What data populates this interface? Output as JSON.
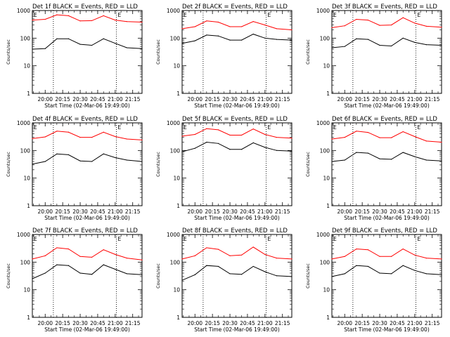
{
  "figure": {
    "type": "line",
    "y_scale": "log",
    "ylim": [
      1,
      1000
    ],
    "y_ticks": [
      "1",
      "10",
      "100",
      "1000"
    ],
    "ylabel": "Counts/sec",
    "xlabel": "Start Time (02-Mar-06 19:49:00)",
    "x_range_minutes": [
      19.5,
      20.0,
      21.5
    ],
    "x_tick_labels": [
      "20:00",
      "20:15",
      "20:30",
      "20:45",
      "21:00",
      "21:15"
    ],
    "x_tick_minutes": [
      20.0,
      20.25,
      20.5,
      20.75,
      21.0,
      21.25
    ],
    "event_marker_label": "E",
    "colors": {
      "events": "#000000",
      "lld": "#ff0000"
    }
  },
  "chart_data": [
    {
      "type": "line",
      "title": "Det 1f BLACK = Events, RED = LLD",
      "x_start": "19:49",
      "x_end": "21:23",
      "dotted_lines": [
        "20:07",
        "21:01"
      ],
      "series": [
        {
          "name": "Events",
          "color": "#000000",
          "x": [
            "19:49",
            "20:00",
            "20:10",
            "20:20",
            "20:30",
            "20:40",
            "20:50",
            "21:00",
            "21:10",
            "21:23"
          ],
          "values": [
            40,
            42,
            95,
            95,
            60,
            55,
            95,
            65,
            45,
            42
          ]
        },
        {
          "name": "LLD",
          "color": "#ff0000",
          "x": [
            "19:49",
            "20:00",
            "20:10",
            "20:20",
            "20:30",
            "20:40",
            "20:50",
            "21:00",
            "21:10",
            "21:23"
          ],
          "values": [
            450,
            480,
            700,
            650,
            420,
            430,
            650,
            450,
            400,
            380
          ]
        }
      ]
    },
    {
      "type": "line",
      "title": "Det 2f BLACK = Events, RED = LLD",
      "x_start": "19:49",
      "x_end": "21:23",
      "dotted_lines": [
        "20:07",
        "21:01"
      ],
      "series": [
        {
          "name": "Events",
          "color": "#000000",
          "x": [
            "19:49",
            "20:00",
            "20:10",
            "20:20",
            "20:30",
            "20:40",
            "20:50",
            "21:00",
            "21:10",
            "21:23"
          ],
          "values": [
            65,
            80,
            130,
            120,
            85,
            85,
            140,
            100,
            90,
            85
          ]
        },
        {
          "name": "LLD",
          "color": "#ff0000",
          "x": [
            "19:49",
            "20:00",
            "20:10",
            "20:20",
            "20:30",
            "20:40",
            "20:50",
            "21:00",
            "21:10",
            "21:23"
          ],
          "values": [
            220,
            260,
            420,
            380,
            260,
            260,
            400,
            300,
            220,
            200
          ]
        }
      ]
    },
    {
      "type": "line",
      "title": "Det 3f BLACK = Events, RED = LLD",
      "x_start": "19:49",
      "x_end": "21:23",
      "dotted_lines": [
        "20:07",
        "21:01"
      ],
      "series": [
        {
          "name": "Events",
          "color": "#000000",
          "x": [
            "19:49",
            "20:00",
            "20:10",
            "20:20",
            "20:30",
            "20:40",
            "20:50",
            "21:00",
            "21:10",
            "21:23"
          ],
          "values": [
            45,
            50,
            95,
            90,
            55,
            52,
            100,
            70,
            58,
            55
          ]
        },
        {
          "name": "LLD",
          "color": "#ff0000",
          "x": [
            "19:49",
            "20:00",
            "20:10",
            "20:20",
            "20:30",
            "20:40",
            "20:50",
            "21:00",
            "21:10",
            "21:23"
          ],
          "values": [
            240,
            280,
            480,
            450,
            290,
            300,
            550,
            350,
            270,
            250
          ]
        }
      ]
    },
    {
      "type": "line",
      "title": "Det 4f BLACK = Events, RED = LLD",
      "x_start": "19:49",
      "x_end": "21:23",
      "dotted_lines": [
        "20:07",
        "21:01"
      ],
      "series": [
        {
          "name": "Events",
          "color": "#000000",
          "x": [
            "19:49",
            "20:00",
            "20:10",
            "20:20",
            "20:30",
            "20:40",
            "20:50",
            "21:00",
            "21:10",
            "21:23"
          ],
          "values": [
            32,
            40,
            75,
            70,
            42,
            40,
            75,
            55,
            45,
            40
          ]
        },
        {
          "name": "LLD",
          "color": "#ff0000",
          "x": [
            "19:49",
            "20:00",
            "20:10",
            "20:20",
            "20:30",
            "20:40",
            "20:50",
            "21:00",
            "21:10",
            "21:23"
          ],
          "values": [
            270,
            310,
            500,
            460,
            300,
            300,
            460,
            320,
            260,
            240
          ]
        }
      ]
    },
    {
      "type": "line",
      "title": "Det 5f BLACK = Events, RED = LLD",
      "x_start": "19:49",
      "x_end": "21:23",
      "dotted_lines": [
        "20:07",
        "21:01"
      ],
      "series": [
        {
          "name": "Events",
          "color": "#000000",
          "x": [
            "19:49",
            "20:00",
            "20:10",
            "20:20",
            "20:30",
            "20:40",
            "20:50",
            "21:00",
            "21:10",
            "21:23"
          ],
          "values": [
            90,
            120,
            200,
            180,
            110,
            110,
            190,
            130,
            100,
            95
          ]
        },
        {
          "name": "LLD",
          "color": "#ff0000",
          "x": [
            "19:49",
            "20:00",
            "20:10",
            "20:20",
            "20:30",
            "20:40",
            "20:50",
            "21:00",
            "21:10",
            "21:23"
          ],
          "values": [
            330,
            380,
            620,
            560,
            360,
            360,
            600,
            380,
            300,
            280
          ]
        }
      ]
    },
    {
      "type": "line",
      "title": "Det 6f BLACK = Events, RED = LLD",
      "x_start": "19:49",
      "x_end": "21:23",
      "dotted_lines": [
        "20:07",
        "21:01"
      ],
      "series": [
        {
          "name": "Events",
          "color": "#000000",
          "x": [
            "19:49",
            "20:00",
            "20:10",
            "20:20",
            "20:30",
            "20:40",
            "20:50",
            "21:00",
            "21:10",
            "21:23"
          ],
          "values": [
            40,
            45,
            85,
            80,
            50,
            48,
            85,
            60,
            45,
            42
          ]
        },
        {
          "name": "LLD",
          "color": "#ff0000",
          "x": [
            "19:49",
            "20:00",
            "20:10",
            "20:20",
            "20:30",
            "20:40",
            "20:50",
            "21:00",
            "21:10",
            "21:23"
          ],
          "values": [
            260,
            300,
            500,
            450,
            290,
            290,
            480,
            320,
            220,
            200
          ]
        }
      ]
    },
    {
      "type": "line",
      "title": "Det 7f BLACK = Events, RED = LLD",
      "x_start": "19:49",
      "x_end": "21:23",
      "dotted_lines": [
        "20:07",
        "21:01"
      ],
      "series": [
        {
          "name": "Events",
          "color": "#000000",
          "x": [
            "19:49",
            "20:00",
            "20:10",
            "20:20",
            "20:30",
            "20:40",
            "20:50",
            "21:00",
            "21:10",
            "21:23"
          ],
          "values": [
            25,
            40,
            80,
            75,
            40,
            36,
            80,
            55,
            38,
            35
          ]
        },
        {
          "name": "LLD",
          "color": "#ff0000",
          "x": [
            "19:49",
            "20:00",
            "20:10",
            "20:20",
            "20:30",
            "20:40",
            "20:50",
            "21:00",
            "21:10",
            "21:23"
          ],
          "values": [
            130,
            170,
            330,
            300,
            160,
            150,
            280,
            190,
            140,
            120
          ]
        }
      ]
    },
    {
      "type": "line",
      "title": "Det 8f BLACK = Events, RED = LLD",
      "x_start": "19:49",
      "x_end": "21:23",
      "dotted_lines": [
        "20:07",
        "21:01"
      ],
      "series": [
        {
          "name": "Events",
          "color": "#000000",
          "x": [
            "19:49",
            "20:00",
            "20:10",
            "20:20",
            "20:30",
            "20:40",
            "20:50",
            "21:00",
            "21:10",
            "21:23"
          ],
          "values": [
            22,
            35,
            75,
            70,
            38,
            36,
            70,
            45,
            32,
            30
          ]
        },
        {
          "name": "LLD",
          "color": "#ff0000",
          "x": [
            "19:49",
            "20:00",
            "20:10",
            "20:20",
            "20:30",
            "20:40",
            "20:50",
            "21:00",
            "21:10",
            "21:23"
          ],
          "values": [
            130,
            170,
            330,
            290,
            170,
            180,
            350,
            190,
            140,
            130
          ]
        }
      ]
    },
    {
      "type": "line",
      "title": "Det 9f BLACK = Events, RED = LLD",
      "x_start": "19:49",
      "x_end": "21:23",
      "dotted_lines": [
        "20:07",
        "21:01"
      ],
      "series": [
        {
          "name": "Events",
          "color": "#000000",
          "x": [
            "19:49",
            "20:00",
            "20:10",
            "20:20",
            "20:30",
            "20:40",
            "20:50",
            "21:00",
            "21:10",
            "21:23"
          ],
          "values": [
            30,
            38,
            75,
            70,
            40,
            38,
            75,
            50,
            38,
            35
          ]
        },
        {
          "name": "LLD",
          "color": "#ff0000",
          "x": [
            "19:49",
            "20:00",
            "20:10",
            "20:20",
            "20:30",
            "20:40",
            "20:50",
            "21:00",
            "21:10",
            "21:23"
          ],
          "values": [
            130,
            160,
            300,
            280,
            160,
            160,
            300,
            180,
            140,
            130
          ]
        }
      ]
    }
  ]
}
